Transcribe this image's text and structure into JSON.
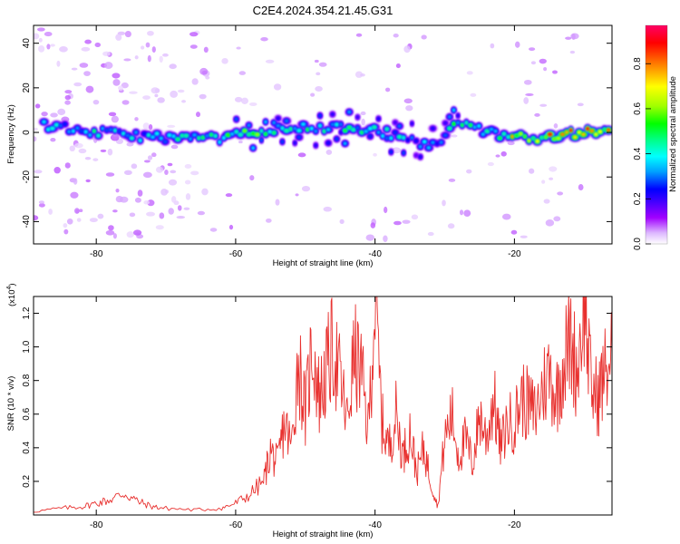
{
  "figure": {
    "title": "C2E4.2024.354.21.45.G31"
  },
  "chart_data": [
    {
      "type": "heatmap",
      "name": "spectrogram",
      "xlabel": "Height of straight line (km)",
      "ylabel": "Frequency (Hz)",
      "xlim": [
        -89,
        -6
      ],
      "ylim": [
        -50,
        48
      ],
      "x_ticks": [
        -80,
        -60,
        -40,
        -20
      ],
      "y_ticks": [
        -40,
        -20,
        0,
        20,
        40
      ],
      "grid": false,
      "colorbar": {
        "label": "Normalized spectral amplitude",
        "range": [
          0.0,
          0.97
        ],
        "ticks": [
          0.0,
          0.2,
          0.4,
          0.6,
          0.8
        ],
        "colormap": "rainbow (white-violet-blue-cyan-green-yellow-red-magenta)"
      },
      "ridge": {
        "description": "main energy band near 0 Hz",
        "x": [
          -87,
          -80,
          -72,
          -64,
          -58,
          -52,
          -46,
          -40,
          -35,
          -31,
          -29,
          -25,
          -20,
          -15,
          -10,
          -6
        ],
        "freq_hz": [
          3,
          0,
          -2,
          -3,
          -1,
          2,
          2,
          1,
          -3,
          -7,
          5,
          1,
          -2,
          -2,
          0,
          0
        ],
        "peak_amplitude": [
          0.45,
          0.55,
          0.5,
          0.6,
          0.7,
          0.6,
          0.6,
          0.5,
          0.5,
          0.45,
          0.6,
          0.55,
          0.85,
          0.9,
          0.95,
          0.9
        ]
      },
      "colors": {
        "colorbar_stops": [
          "#ffffff",
          "#ddb8ff",
          "#a100ff",
          "#3a00ff",
          "#0000ff",
          "#00a0ff",
          "#00ffff",
          "#00ff80",
          "#00ff00",
          "#a0ff00",
          "#ffff00",
          "#ff8000",
          "#ff0000",
          "#ff0066"
        ]
      }
    },
    {
      "type": "line",
      "name": "snr",
      "xlabel": "Height of straight line (km)",
      "ylabel": "SNR (10 * v/v)",
      "y_multiplier_label": "(x10",
      "y_multiplier_exp": "4",
      "y_multiplier_close": ")",
      "xlim": [
        -89,
        -6
      ],
      "ylim": [
        0,
        1.3
      ],
      "x_ticks": [
        -80,
        -60,
        -40,
        -20
      ],
      "y_ticks": [
        0.2,
        0.4,
        0.6,
        0.8,
        1.0,
        1.2
      ],
      "grid": false,
      "series": [
        {
          "color": "#e8302e",
          "x": [
            -89,
            -85,
            -82,
            -80,
            -78,
            -76,
            -74,
            -72,
            -70,
            -66,
            -62,
            -60,
            -58,
            -56,
            -55,
            -54,
            -53,
            -52,
            -51,
            -50,
            -49,
            -48,
            -47,
            -46,
            -45,
            -44,
            -43,
            -42,
            -41,
            -40,
            -39,
            -38,
            -37,
            -36,
            -35,
            -34,
            -33,
            -32,
            -31,
            -30,
            -29,
            -28,
            -27,
            -26,
            -25,
            -24,
            -23,
            -22,
            -21,
            -20,
            -19,
            -18,
            -17,
            -16,
            -15,
            -14,
            -13,
            -12,
            -11,
            -10,
            -9,
            -8,
            -7,
            -6
          ],
          "y": [
            0.02,
            0.04,
            0.05,
            0.07,
            0.09,
            0.13,
            0.08,
            0.05,
            0.04,
            0.03,
            0.04,
            0.07,
            0.12,
            0.2,
            0.38,
            0.3,
            0.55,
            0.4,
            0.93,
            0.6,
            1.02,
            0.7,
            0.85,
            1.0,
            0.8,
            0.55,
            0.95,
            0.85,
            0.5,
            1.28,
            0.55,
            0.4,
            0.6,
            0.35,
            0.5,
            0.25,
            0.4,
            0.2,
            0.05,
            0.45,
            0.6,
            0.35,
            0.45,
            0.3,
            0.6,
            0.45,
            0.7,
            0.4,
            0.55,
            0.55,
            0.7,
            0.65,
            0.6,
            0.75,
            0.85,
            0.7,
            0.9,
            1.05,
            0.85,
            1.3,
            0.75,
            0.7,
            0.85,
            0.95
          ]
        }
      ]
    }
  ]
}
